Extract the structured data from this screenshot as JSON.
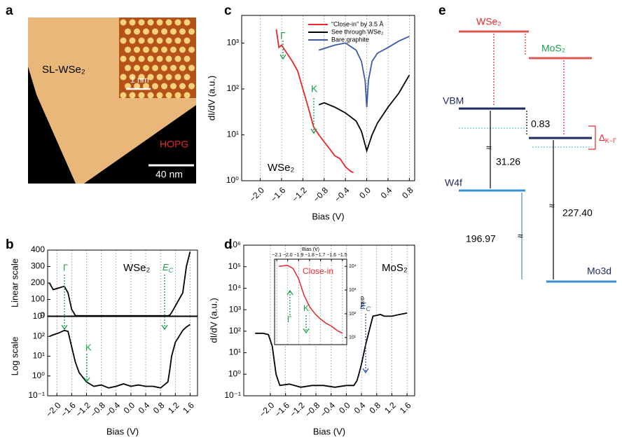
{
  "panel_labels": [
    "a",
    "b",
    "c",
    "d",
    "e"
  ],
  "image_a": {
    "labels": [
      "SL-WSe₂",
      "1 nm",
      "HOPG",
      "40 nm"
    ]
  },
  "chart_data": [
    {
      "type": "line",
      "ylabel": "Linear scale",
      "ylim": [
        0,
        400
      ],
      "yticks": [
        0,
        100,
        200,
        300,
        400
      ],
      "xlim": [
        -2.25,
        1.8
      ],
      "grid": "x",
      "annotations": [
        "WSe₂",
        "Γ",
        {
          "text": "E",
          "subscript": "C"
        }
      ],
      "series": [
        {
          "color": "#000000",
          "x": [
            -2.2,
            -2.1,
            -1.95,
            -1.8,
            -1.7,
            -1.6,
            -1.5,
            -1.4,
            -1.2,
            -1.0,
            -0.8,
            -0.6,
            -0.4,
            -0.2,
            0,
            0.2,
            0.4,
            0.6,
            0.8,
            1.0,
            1.05,
            1.1,
            1.2,
            1.3,
            1.4,
            1.5,
            1.6
          ],
          "values": [
            200,
            160,
            170,
            180,
            140,
            40,
            2,
            1,
            1,
            1,
            1,
            1,
            1,
            1,
            1,
            1,
            1,
            1,
            1,
            1,
            5,
            20,
            60,
            100,
            140,
            300,
            390
          ]
        }
      ]
    },
    {
      "type": "line",
      "ylabel": "Log scale",
      "xlabel": "Bias (V)",
      "y_scale": "log",
      "ylim": [
        0.1,
        1000
      ],
      "xlim": [
        -2.25,
        1.8
      ],
      "grid": "x",
      "yticks": [
        {
          "value": 0.1,
          "label": "10⁻¹"
        },
        {
          "value": 1,
          "label": "10⁰"
        },
        {
          "value": 10,
          "label": "10¹"
        },
        {
          "value": 100,
          "label": "10²"
        },
        {
          "value": 1000,
          "label": "10³"
        }
      ],
      "xticks": [
        {
          "value": -2,
          "label": "−2.0"
        },
        {
          "value": -1.6,
          "label": "−1.6"
        },
        {
          "value": -1.2,
          "label": "−1.2"
        },
        {
          "value": -0.8,
          "label": "−0.8"
        },
        {
          "value": -0.4,
          "label": "−0.4"
        },
        {
          "value": 0,
          "label": "0.0"
        },
        0.4,
        0.8,
        1.2,
        1.6
      ],
      "annotations": [
        "K"
      ],
      "series": [
        {
          "color": "#000000",
          "x": [
            -2.2,
            -2.1,
            -1.95,
            -1.8,
            -1.7,
            -1.6,
            -1.5,
            -1.4,
            -1.2,
            -1.0,
            -0.8,
            -0.6,
            -0.4,
            -0.2,
            0,
            0.2,
            0.4,
            0.6,
            0.8,
            1.0,
            1.05,
            1.1,
            1.2,
            1.3,
            1.4,
            1.5,
            1.6
          ],
          "values": [
            100,
            120,
            150,
            200,
            180,
            30,
            5,
            1.5,
            0.5,
            0.3,
            0.35,
            0.25,
            0.3,
            0.4,
            0.3,
            0.35,
            0.3,
            0.3,
            0.25,
            0.5,
            2,
            10,
            50,
            100,
            200,
            300,
            400
          ]
        }
      ]
    },
    {
      "type": "line",
      "ylabel": "dI/dV (a.u.)",
      "xlabel": "Bias (V)",
      "y_scale": "log",
      "ylim": [
        1,
        4000
      ],
      "xlim": [
        -2.35,
        0.9
      ],
      "grid": "x",
      "yticks": [
        {
          "value": 1,
          "label": "10⁰"
        },
        {
          "value": 10,
          "label": "10¹"
        },
        {
          "value": 100,
          "label": "10²"
        },
        {
          "value": 1000,
          "label": "10³"
        }
      ],
      "xticks": [
        {
          "value": -2,
          "label": "−2.0"
        },
        {
          "value": -1.6,
          "label": "−1.6"
        },
        {
          "value": -1.2,
          "label": "−1.2"
        },
        {
          "value": -0.8,
          "label": "−0.8"
        },
        {
          "value": -0.4,
          "label": "−0.4"
        },
        {
          "value": 0,
          "label": "0.0"
        },
        0.4,
        0.8
      ],
      "annotations": [
        "Γ",
        "K",
        "WSe₂"
      ],
      "series": [
        {
          "name": "“Close-in” by 3.5 Å",
          "color": "#e8262c",
          "x": [
            -1.7,
            -1.65,
            -1.6,
            -1.5,
            -1.4,
            -1.3,
            -1.2,
            -1.1,
            -1.0,
            -0.9,
            -0.8,
            -0.7,
            -0.6,
            -0.5,
            -0.4,
            -0.3,
            -0.25
          ],
          "values": [
            2000,
            800,
            900,
            600,
            400,
            250,
            100,
            40,
            15,
            10,
            7,
            5,
            3.5,
            3,
            2,
            1.6,
            1.5
          ]
        },
        {
          "name": "See through WSe₂",
          "color": "#000000",
          "x": [
            -0.9,
            -0.8,
            -0.6,
            -0.4,
            -0.2,
            -0.1,
            0,
            0.1,
            0.2,
            0.4,
            0.6,
            0.8
          ],
          "values": [
            45,
            50,
            40,
            30,
            20,
            12,
            4.5,
            10,
            18,
            40,
            80,
            200
          ]
        },
        {
          "name": "Bare graphite",
          "color": "#3a5aa8",
          "x": [
            -0.9,
            -0.6,
            -0.4,
            -0.2,
            -0.1,
            -0.03,
            0,
            0.03,
            0.1,
            0.2,
            0.4,
            0.6,
            0.8
          ],
          "values": [
            700,
            900,
            1000,
            700,
            400,
            150,
            40,
            150,
            400,
            600,
            800,
            1100,
            1400
          ]
        }
      ]
    },
    {
      "type": "line",
      "ylabel": "dI/dV (a.u.)",
      "xlabel": "Bias (V)",
      "y_scale": "log",
      "ylim": [
        0.1,
        1000000
      ],
      "xlim": [
        -2.7,
        1.8
      ],
      "grid": "x",
      "yticks": [
        {
          "value": 0.1,
          "label": "10⁻¹"
        },
        {
          "value": 1,
          "label": "10⁰"
        },
        {
          "value": 10,
          "label": "10¹"
        },
        {
          "value": 100,
          "label": "10²"
        },
        {
          "value": 1000,
          "label": "10³"
        },
        {
          "value": 10000,
          "label": "10⁴"
        },
        {
          "value": 100000,
          "label": "10⁵"
        },
        {
          "value": 1000000,
          "label": "10⁶"
        }
      ],
      "xticks": [
        {
          "value": -2,
          "label": "−2.0"
        },
        {
          "value": -1.6,
          "label": "−1.6"
        },
        {
          "value": -1.2,
          "label": "−1.2"
        },
        {
          "value": -0.8,
          "label": "−0.8"
        },
        {
          "value": -0.4,
          "label": "−0.4"
        },
        {
          "value": 0,
          "label": "0.0"
        },
        0.4,
        0.8,
        1.2,
        1.6
      ],
      "annotations": [
        "MoS₂",
        {
          "text": "E",
          "subscript": "C"
        }
      ],
      "series": [
        {
          "color": "#000000",
          "x": [
            -2.4,
            -2.2,
            -2.05,
            -1.95,
            -1.85,
            -1.75,
            -1.5,
            -1.2,
            -0.9,
            -0.6,
            -0.3,
            0,
            0.2,
            0.28,
            0.33,
            0.4,
            0.5,
            0.6,
            0.7,
            0.9,
            1.0,
            1.2,
            1.4,
            1.6
          ],
          "values": [
            80,
            80,
            70,
            20,
            1,
            0.3,
            0.35,
            0.25,
            0.3,
            0.3,
            0.25,
            0.3,
            0.3,
            0.5,
            1,
            3,
            20,
            100,
            500,
            600,
            500,
            500,
            600,
            700
          ]
        }
      ]
    },
    {
      "type": "line",
      "xlabel": "Bias (V)",
      "ylabel": "dI/dV",
      "y_scale": "log",
      "ylim": [
        5,
        20000
      ],
      "xlim": [
        -2.12,
        -1.46
      ],
      "grid": "x",
      "x_axis": "top",
      "y_axis": "right",
      "yticks": [
        {
          "value": 10,
          "label": "10¹"
        },
        {
          "value": 100,
          "label": "10²"
        },
        {
          "value": 1000,
          "label": "10³"
        },
        {
          "value": 10000,
          "label": "10⁴"
        }
      ],
      "xticks": [
        {
          "value": -2.1,
          "label": "−2.1"
        },
        {
          "value": -2,
          "label": "−2.0"
        },
        {
          "value": -1.9,
          "label": "−1.9"
        },
        {
          "value": -1.8,
          "label": "−1.8"
        },
        {
          "value": -1.7,
          "label": "−1.7"
        },
        {
          "value": -1.6,
          "label": "−1.6"
        },
        {
          "value": -1.5,
          "label": "−1.5"
        }
      ],
      "annotations": [
        "Close-in",
        "Γ",
        "K"
      ],
      "series": [
        {
          "color": "#e8262c",
          "x": [
            -2.08,
            -2.0,
            -1.95,
            -1.9,
            -1.85,
            -1.8,
            -1.75,
            -1.7,
            -1.65,
            -1.6,
            -1.55,
            -1.5
          ],
          "values": [
            10000,
            11000,
            8000,
            3000,
            600,
            200,
            100,
            60,
            40,
            30,
            20,
            15
          ]
        }
      ]
    }
  ],
  "diagram_e": {
    "labels": [
      "WSe₂",
      "MoS₂",
      "VBM",
      "0.83",
      "31.26",
      "W4f",
      "196.97",
      "227.40",
      "Mo3d",
      "≈",
      "≈",
      "≈"
    ],
    "delta": {
      "text": "Δ",
      "subscript": "K−Γ"
    }
  }
}
